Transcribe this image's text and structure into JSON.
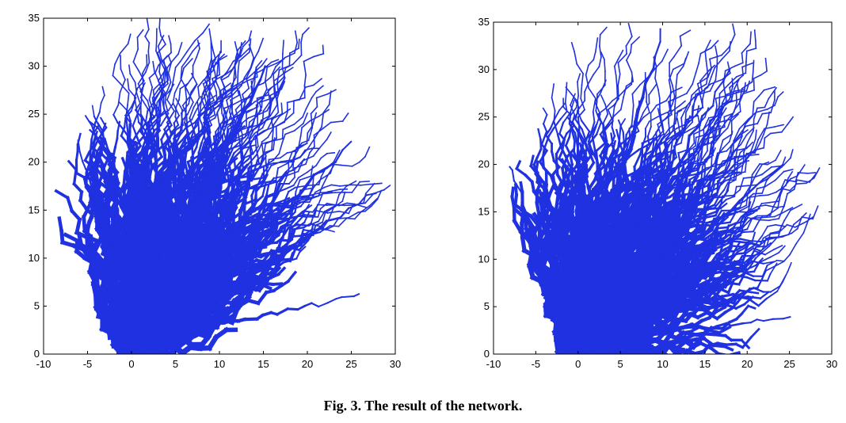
{
  "caption": "Fig. 3. The result of the network.",
  "colors": {
    "network": "#1f31e0",
    "axis": "#000000",
    "background": "#ffffff"
  },
  "chart_data": [
    {
      "type": "scatter",
      "title": "",
      "xlabel": "",
      "ylabel": "",
      "xlim": [
        -10,
        30
      ],
      "ylim": [
        0,
        35
      ],
      "xticks": [
        -10,
        -5,
        0,
        5,
        10,
        15,
        20,
        25,
        30
      ],
      "yticks": [
        0,
        5,
        10,
        15,
        20,
        25,
        30,
        35
      ],
      "xtick_labels": [
        "-10",
        "-5",
        "0",
        "5",
        "10",
        "15",
        "20",
        "25",
        "30"
      ],
      "ytick_labels": [
        "0",
        "5",
        "10",
        "15",
        "20",
        "25",
        "30",
        "35"
      ],
      "grid": false,
      "boundary_hexagon": [
        [
          -2.5,
          0
        ],
        [
          9,
          0
        ],
        [
          29.5,
          17.5
        ],
        [
          20.5,
          35
        ],
        [
          0,
          35
        ],
        [
          -10,
          18
        ]
      ],
      "trunk_root": [
        0,
        0
      ]
    },
    {
      "type": "scatter",
      "title": "",
      "xlabel": "",
      "ylabel": "",
      "xlim": [
        -10,
        30
      ],
      "ylim": [
        0,
        35
      ],
      "xticks": [
        -10,
        -5,
        0,
        5,
        10,
        15,
        20,
        25,
        30
      ],
      "yticks": [
        0,
        5,
        10,
        15,
        20,
        25,
        30,
        35
      ],
      "xtick_labels": [
        "-10",
        "-5",
        "0",
        "5",
        "10",
        "15",
        "20",
        "25",
        "30"
      ],
      "ytick_labels": [
        "0",
        "5",
        "10",
        "15",
        "20",
        "25",
        "30",
        "35"
      ],
      "grid": false,
      "boundary_hexagon": [
        [
          -2.5,
          0
        ],
        [
          20,
          0
        ],
        [
          30,
          17.5
        ],
        [
          20.5,
          35
        ],
        [
          0,
          35
        ],
        [
          -10,
          17.5
        ]
      ],
      "trunk_root": [
        -1,
        0
      ]
    }
  ]
}
